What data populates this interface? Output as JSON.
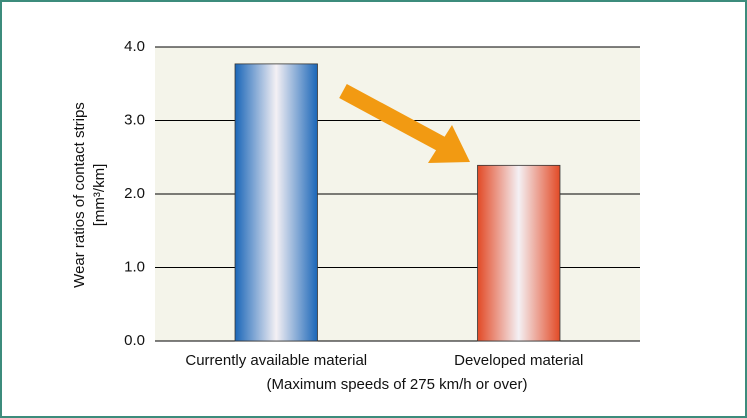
{
  "chart_data": {
    "type": "bar",
    "y_label": [
      "Wear ratios of contact strips",
      "[mm³/km]"
    ],
    "x_label": "(Maximum speeds of 275 km/h or over)",
    "categories": [
      "Currently available material",
      "Developed material"
    ],
    "values": [
      3.77,
      2.39
    ],
    "colors": [
      "#1a66b8",
      "#e24a26"
    ],
    "ylim": [
      0,
      4
    ],
    "yticks": [
      {
        "value": 0,
        "label": "0.0"
      },
      {
        "value": 1,
        "label": "1.0"
      },
      {
        "value": 2,
        "label": "2.0"
      },
      {
        "value": 3,
        "label": "3.0"
      },
      {
        "value": 4,
        "label": "4.0"
      }
    ],
    "grid": true
  }
}
